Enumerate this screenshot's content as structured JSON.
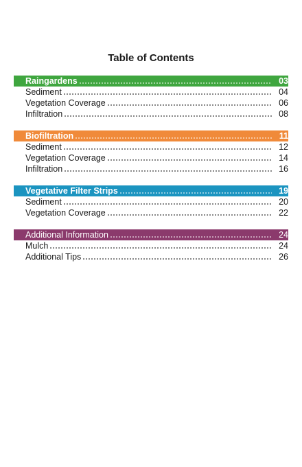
{
  "title": "Table of Contents",
  "sections": [
    {
      "heading": "Raingardens",
      "page": "03",
      "color": "#3fa63f",
      "entries": [
        {
          "label": "Sediment",
          "page": "04"
        },
        {
          "label": "Vegetation Coverage",
          "page": "06"
        },
        {
          "label": "Infiltration",
          "page": "08"
        }
      ]
    },
    {
      "heading": "Biofiltration",
      "page": "11",
      "color": "#f08a3a",
      "entries": [
        {
          "label": "Sediment",
          "page": "12"
        },
        {
          "label": "Vegetation Coverage",
          "page": "14"
        },
        {
          "label": "Infiltration",
          "page": "16"
        }
      ]
    },
    {
      "heading": "Vegetative Filter Strips",
      "page": "19",
      "color": "#1b94c0",
      "entries": [
        {
          "label": "Sediment",
          "page": "20"
        },
        {
          "label": "Vegetation Coverage",
          "page": "22"
        }
      ]
    },
    {
      "heading": "Additional Information",
      "page": "24",
      "color": "#8b3a6c",
      "entries": [
        {
          "label": "Mulch",
          "page": "24"
        },
        {
          "label": "Additional Tips",
          "page": "26"
        }
      ]
    }
  ]
}
